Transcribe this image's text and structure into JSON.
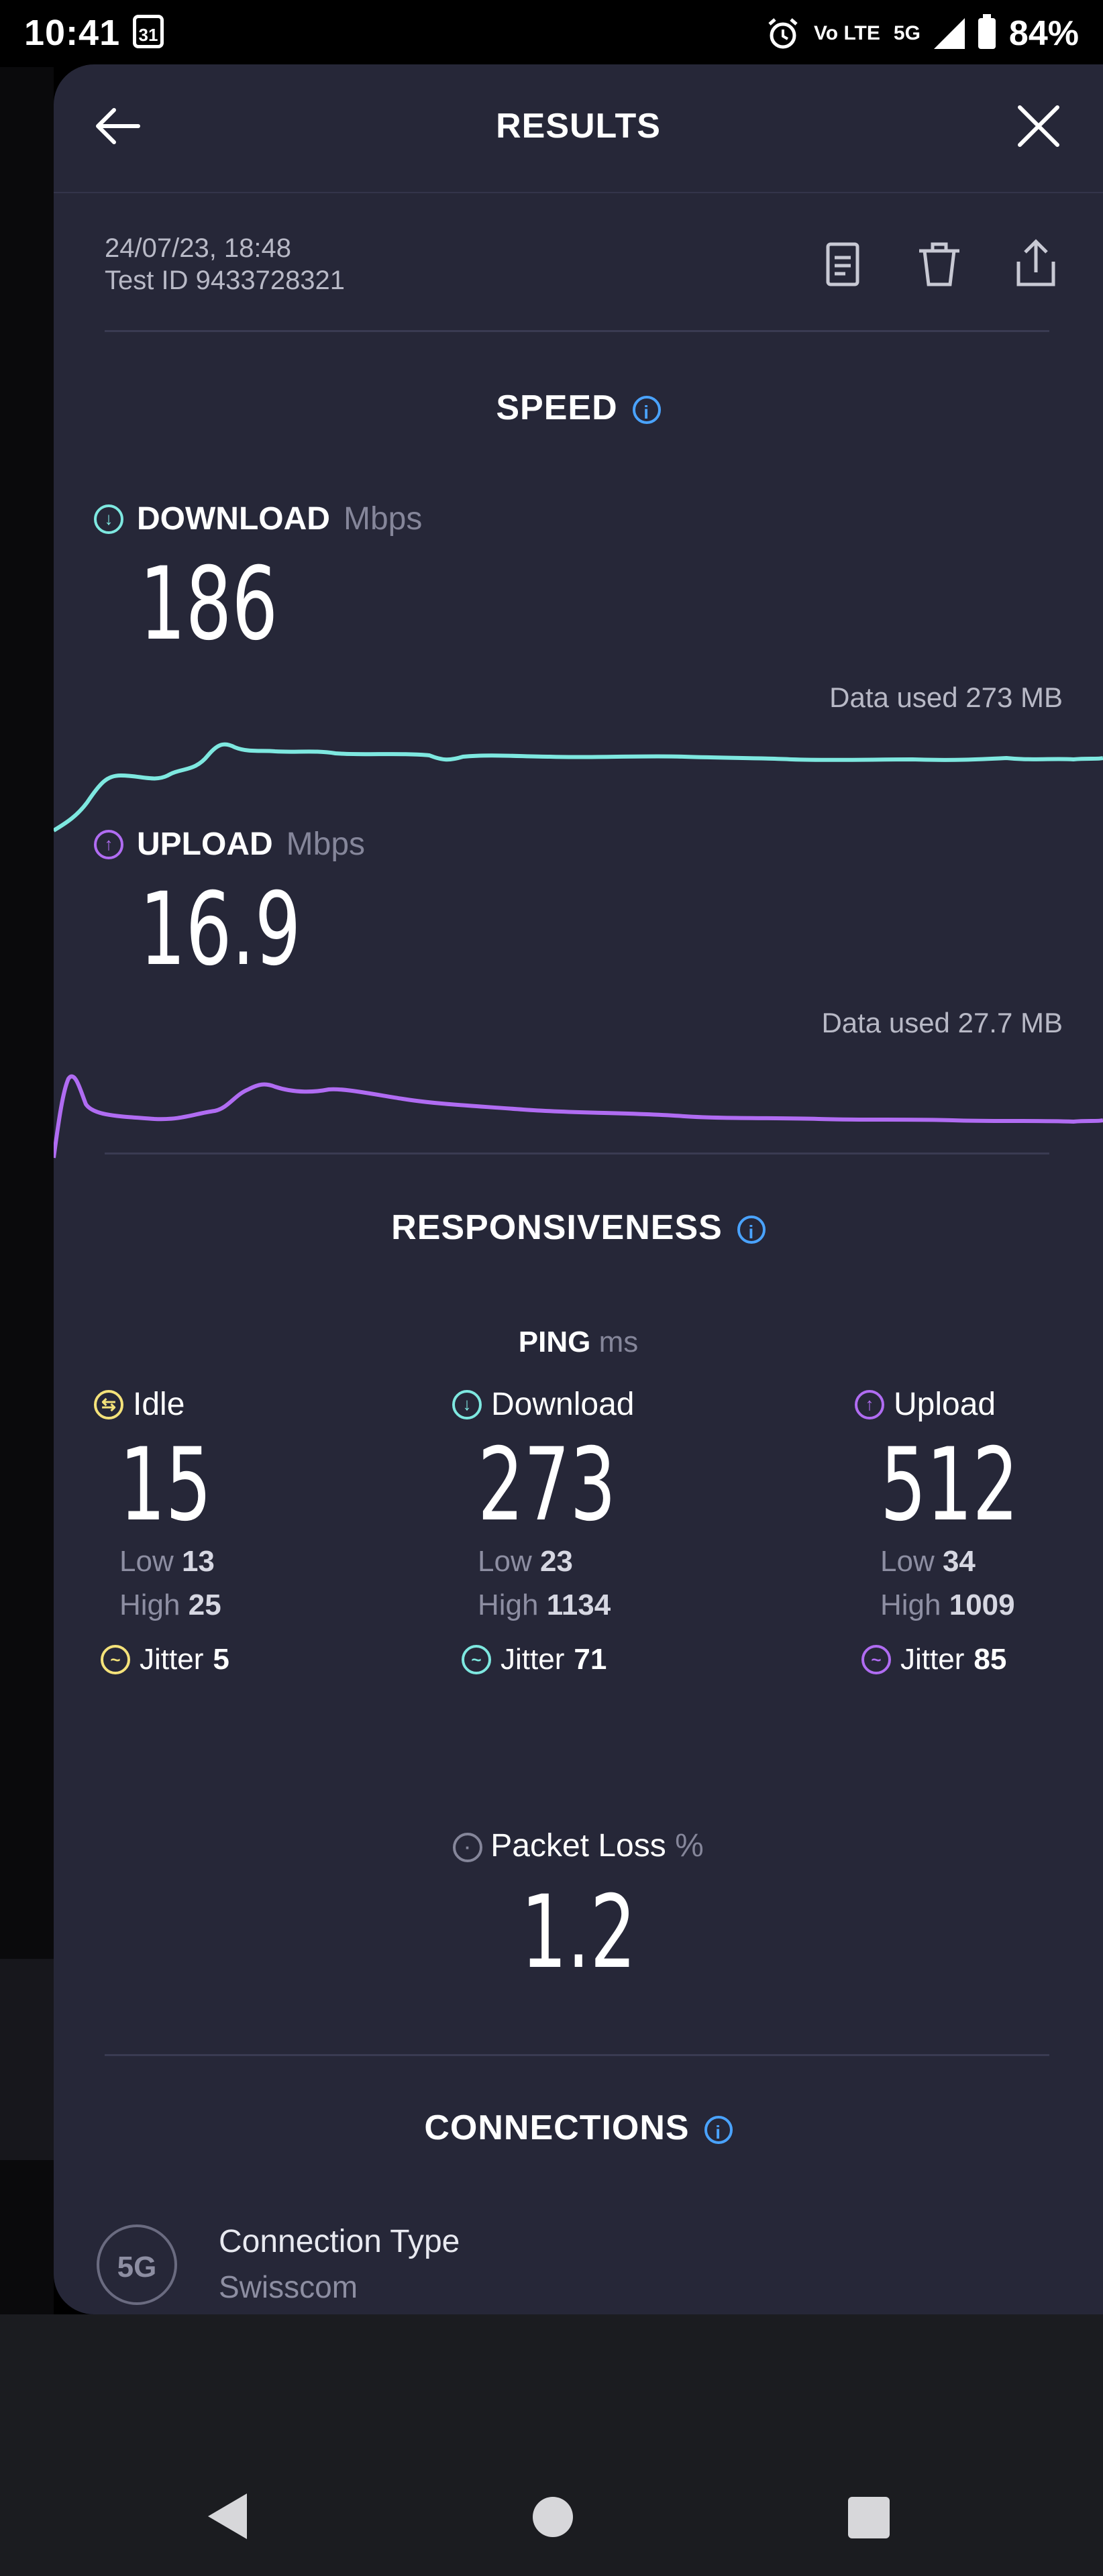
{
  "status_bar": {
    "time": "10:41",
    "calendar_day": "31",
    "volte": "Vo LTE",
    "network": "5G",
    "battery": "84%"
  },
  "header": {
    "title": "RESULTS"
  },
  "meta": {
    "datetime": "24/07/23, 18:48",
    "test_id": "Test ID 9433728321"
  },
  "speed": {
    "title": "SPEED",
    "download": {
      "label": "DOWNLOAD",
      "unit": "Mbps",
      "value": "186",
      "data_used": "Data used 273 MB",
      "color": "#7ee8e0"
    },
    "upload": {
      "label": "UPLOAD",
      "unit": "Mbps",
      "value": "16.9",
      "data_used": "Data used 27.7 MB",
      "color": "#b06cf2"
    }
  },
  "responsiveness": {
    "title": "RESPONSIVENESS",
    "ping_label": "PING",
    "ping_unit": "ms",
    "columns": [
      {
        "label": "Idle",
        "value": "15",
        "low_label": "Low",
        "low": "13",
        "high_label": "High",
        "high": "25",
        "jitter_label": "Jitter",
        "jitter": "5",
        "color": "#f4e27a"
      },
      {
        "label": "Download",
        "value": "273",
        "low_label": "Low",
        "low": "23",
        "high_label": "High",
        "high": "1134",
        "jitter_label": "Jitter",
        "jitter": "71",
        "color": "#7ee8e0"
      },
      {
        "label": "Upload",
        "value": "512",
        "low_label": "Low",
        "low": "34",
        "high_label": "High",
        "high": "1009",
        "jitter_label": "Jitter",
        "jitter": "85",
        "color": "#b06cf2"
      }
    ],
    "packet_loss_label": "Packet Loss",
    "packet_loss_unit": "%",
    "packet_loss": "1.2"
  },
  "connections": {
    "title": "CONNECTIONS",
    "icon_text": "5G",
    "type_label": "Connection Type",
    "provider": "Swisscom"
  },
  "colors": {
    "accent_info": "#4aa3ff",
    "background": "#262738"
  }
}
